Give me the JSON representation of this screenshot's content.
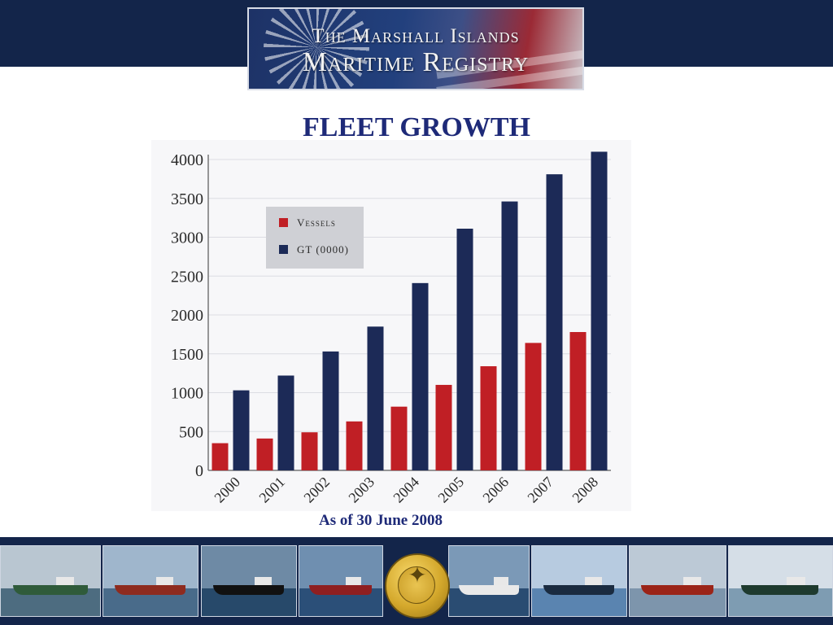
{
  "header": {
    "logo_line1": "The Marshall Islands",
    "logo_line2": "Maritime Registry"
  },
  "title": "FLEET GROWTH",
  "footnote": "As of 30 June 2008",
  "colors": {
    "navy": "#13254a",
    "vessels": "#c01f25",
    "gt": "#1c2a57",
    "title": "#1e2a78"
  },
  "chart_data": {
    "type": "bar",
    "categories": [
      "2000",
      "2001",
      "2002",
      "2003",
      "2004",
      "2005",
      "2006",
      "2007",
      "2008"
    ],
    "series": [
      {
        "name": "Vessels",
        "color": "#c01f25",
        "values": [
          350,
          410,
          490,
          630,
          820,
          1100,
          1340,
          1640,
          1780
        ]
      },
      {
        "name": "GT (0000)",
        "color": "#1c2a57",
        "values": [
          1030,
          1220,
          1530,
          1850,
          2410,
          3110,
          3460,
          3810,
          4100
        ]
      }
    ],
    "ylim": [
      0,
      4000
    ],
    "yticks": [
      "0",
      "500",
      "1000",
      "1500",
      "2000",
      "2500",
      "3000",
      "3500",
      "4000"
    ],
    "grid": true,
    "legend_position": "top-left"
  },
  "footer": {
    "photos": [
      {
        "name": "photo-ship-1",
        "icon": "ship-icon"
      },
      {
        "name": "photo-ship-2",
        "icon": "ship-icon"
      },
      {
        "name": "photo-ship-3",
        "icon": "ship-icon"
      },
      {
        "name": "photo-ship-4",
        "icon": "ship-icon"
      },
      {
        "name": "photo-ship-5",
        "icon": "ship-icon"
      },
      {
        "name": "photo-ship-6",
        "icon": "ship-icon"
      },
      {
        "name": "photo-ship-7",
        "icon": "ship-icon"
      },
      {
        "name": "photo-ship-8",
        "icon": "ship-icon"
      }
    ],
    "seal_icon": "compass-rose-icon",
    "seal_text": "INTERNATIONAL REGISTRIES",
    "seal_year": "1948"
  }
}
